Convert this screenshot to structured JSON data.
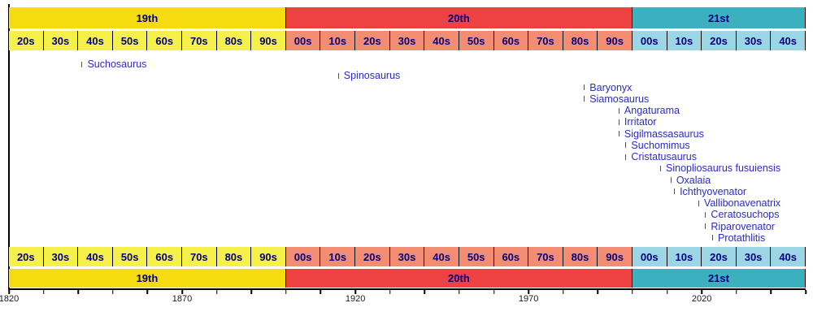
{
  "chart_data": {
    "type": "timeline",
    "description": "Timeline of spinosaurid genus naming dates, 1820-2050, grouped by century and decade",
    "x_range": [
      1820,
      2050
    ],
    "axis_tick_interval_years": 10,
    "axis_labels": [
      "1820",
      "1870",
      "1920",
      "1970",
      "2020"
    ],
    "centuries": [
      {
        "label": "19th",
        "start": 1820,
        "end": 1900,
        "band_color": "#F6DB0E",
        "decade_color": "#F6F04A",
        "decades": [
          "20s",
          "30s",
          "40s",
          "50s",
          "60s",
          "70s",
          "80s",
          "90s"
        ]
      },
      {
        "label": "20th",
        "start": 1900,
        "end": 2000,
        "band_color": "#EE4141",
        "decade_color": "#F28C73",
        "decades": [
          "00s",
          "10s",
          "20s",
          "30s",
          "40s",
          "50s",
          "60s",
          "70s",
          "80s",
          "90s"
        ]
      },
      {
        "label": "21st",
        "start": 2000,
        "end": 2050,
        "band_color": "#3BB0BF",
        "decade_color": "#9CD5E4",
        "decades": [
          "00s",
          "10s",
          "20s",
          "30s",
          "40s"
        ]
      }
    ],
    "events": [
      {
        "label": "Suchosaurus",
        "year": 1841
      },
      {
        "label": "Spinosaurus",
        "year": 1915
      },
      {
        "label": "Baryonyx",
        "year": 1986
      },
      {
        "label": "Siamosaurus",
        "year": 1986
      },
      {
        "label": "Angaturama",
        "year": 1996
      },
      {
        "label": "Irritator",
        "year": 1996
      },
      {
        "label": "Sigilmassasaurus",
        "year": 1996
      },
      {
        "label": "Suchomimus",
        "year": 1998
      },
      {
        "label": "Cristatusaurus",
        "year": 1998
      },
      {
        "label": "Sinopliosaurus fusuiensis",
        "year": 2008
      },
      {
        "label": "Oxalaia",
        "year": 2011
      },
      {
        "label": "Ichthyovenator",
        "year": 2012
      },
      {
        "label": "Vallibonavenatrix",
        "year": 2019
      },
      {
        "label": "Ceratosuchops",
        "year": 2021
      },
      {
        "label": "Riparovenator",
        "year": 2021
      },
      {
        "label": "Protathlitis",
        "year": 2023
      }
    ]
  },
  "colors": {
    "band_text": "#000080",
    "taxon_text": "#2B2BC8",
    "taxon_tick": "#555555",
    "axis": "#000000",
    "axis_label_text": "#1a1a1a",
    "background": "#ffffff"
  }
}
